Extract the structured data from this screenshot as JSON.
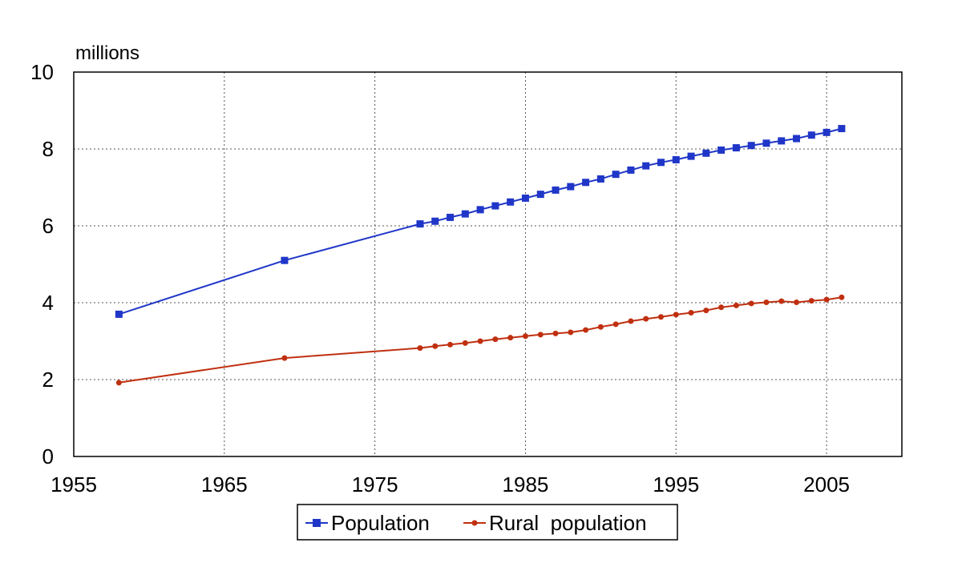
{
  "chart_data": {
    "type": "line",
    "title": "",
    "xlabel": "",
    "ylabel": "millions",
    "xlim": [
      1955,
      2010
    ],
    "ylim": [
      0,
      10
    ],
    "xticks": [
      1955,
      1965,
      1975,
      1985,
      1995,
      2005
    ],
    "yticks": [
      0,
      2,
      4,
      6,
      8,
      10
    ],
    "grid": true,
    "legend_position": "bottom-center",
    "series": [
      {
        "name": "Population",
        "color": "#1f36c8",
        "marker": "square",
        "points": [
          [
            1958,
            3.7
          ],
          [
            1969,
            5.1
          ],
          [
            1978,
            6.05
          ],
          [
            1979,
            6.12
          ],
          [
            1980,
            6.22
          ],
          [
            1981,
            6.31
          ],
          [
            1982,
            6.42
          ],
          [
            1983,
            6.52
          ],
          [
            1984,
            6.62
          ],
          [
            1985,
            6.72
          ],
          [
            1986,
            6.82
          ],
          [
            1987,
            6.93
          ],
          [
            1988,
            7.02
          ],
          [
            1989,
            7.13
          ],
          [
            1990,
            7.22
          ],
          [
            1991,
            7.34
          ],
          [
            1992,
            7.45
          ],
          [
            1993,
            7.56
          ],
          [
            1994,
            7.65
          ],
          [
            1995,
            7.72
          ],
          [
            1996,
            7.81
          ],
          [
            1997,
            7.89
          ],
          [
            1998,
            7.97
          ],
          [
            1999,
            8.03
          ],
          [
            2000,
            8.09
          ],
          [
            2001,
            8.15
          ],
          [
            2002,
            8.21
          ],
          [
            2003,
            8.27
          ],
          [
            2004,
            8.36
          ],
          [
            2005,
            8.43
          ],
          [
            2006,
            8.53
          ]
        ]
      },
      {
        "name": "Rural  population",
        "color": "#c03010",
        "marker": "circle",
        "points": [
          [
            1958,
            1.92
          ],
          [
            1969,
            2.56
          ],
          [
            1978,
            2.82
          ],
          [
            1979,
            2.87
          ],
          [
            1980,
            2.91
          ],
          [
            1981,
            2.95
          ],
          [
            1982,
            3.0
          ],
          [
            1983,
            3.05
          ],
          [
            1984,
            3.09
          ],
          [
            1985,
            3.13
          ],
          [
            1986,
            3.17
          ],
          [
            1987,
            3.2
          ],
          [
            1988,
            3.23
          ],
          [
            1989,
            3.29
          ],
          [
            1990,
            3.37
          ],
          [
            1991,
            3.44
          ],
          [
            1992,
            3.52
          ],
          [
            1993,
            3.58
          ],
          [
            1994,
            3.63
          ],
          [
            1995,
            3.69
          ],
          [
            1996,
            3.74
          ],
          [
            1997,
            3.8
          ],
          [
            1998,
            3.88
          ],
          [
            1999,
            3.93
          ],
          [
            2000,
            3.98
          ],
          [
            2001,
            4.01
          ],
          [
            2002,
            4.04
          ],
          [
            2003,
            4.01
          ],
          [
            2004,
            4.05
          ],
          [
            2005,
            4.08
          ],
          [
            2006,
            4.14
          ]
        ]
      }
    ]
  }
}
